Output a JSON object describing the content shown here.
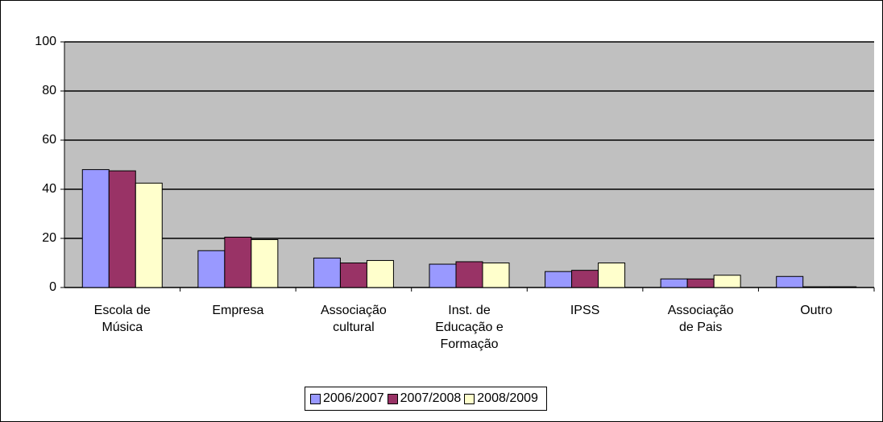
{
  "chart_data": {
    "type": "bar",
    "categories": [
      "Escola de Música",
      "Empresa",
      "Associação cultural",
      "Inst. de Educação e Formação",
      "IPSS",
      "Associação de Pais",
      "Outro"
    ],
    "series": [
      {
        "name": "2006/2007",
        "color": "#9999ff",
        "values": [
          48,
          15,
          12,
          9.5,
          6.5,
          3.5,
          4.5
        ]
      },
      {
        "name": "2007/2008",
        "color": "#993366",
        "values": [
          47.5,
          20.5,
          10,
          10.5,
          7,
          3.5,
          0.3
        ]
      },
      {
        "name": "2008/2009",
        "color": "#ffffcc",
        "values": [
          42.5,
          19.5,
          11,
          10,
          10,
          5,
          0.3
        ]
      }
    ],
    "ylim": [
      0,
      100
    ],
    "yticks": [
      0,
      20,
      40,
      60,
      80,
      100
    ],
    "grid": true
  }
}
